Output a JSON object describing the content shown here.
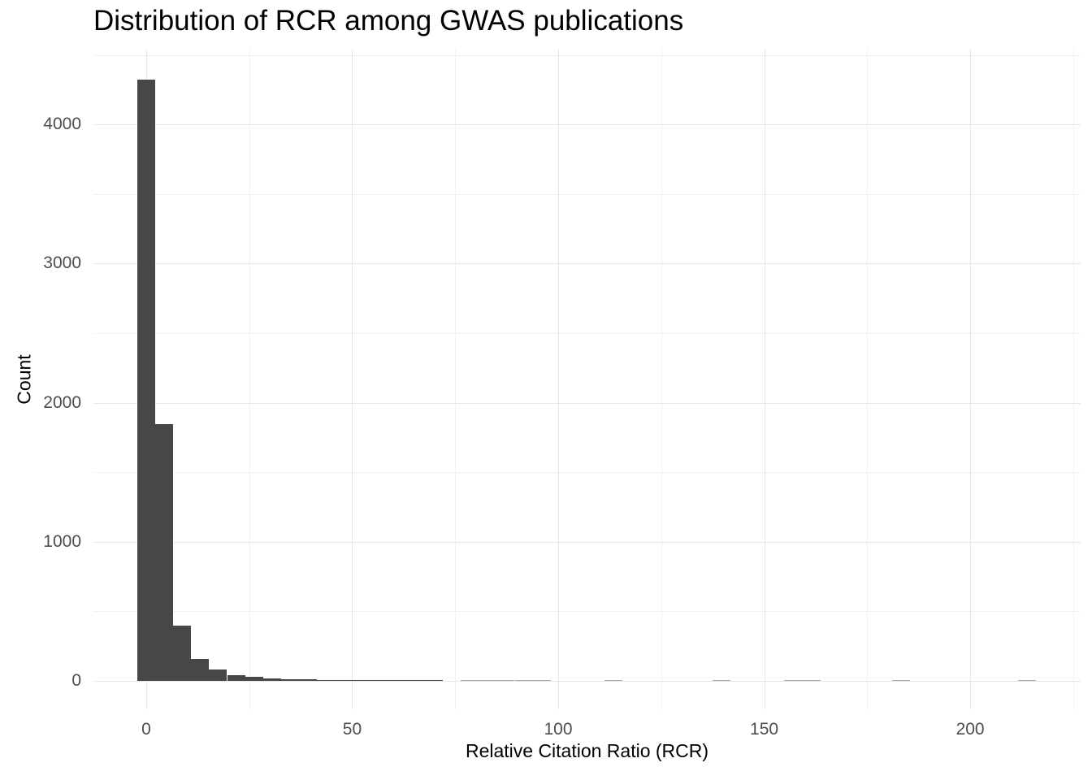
{
  "chart_data": {
    "type": "bar",
    "subtype": "histogram",
    "title": "Distribution of RCR among GWAS publications",
    "xlabel": "Relative Citation Ratio (RCR)",
    "ylabel": "Count",
    "x_major_ticks": [
      0,
      50,
      100,
      150,
      200
    ],
    "x_minor_ticks": [
      25,
      75,
      125,
      175,
      225
    ],
    "y_major_ticks": [
      0,
      1000,
      2000,
      3000,
      4000
    ],
    "y_minor_ticks": [
      500,
      1500,
      2500,
      3500,
      4500
    ],
    "xlim": [
      -12.8,
      226.8
    ],
    "ylim": [
      -204,
      4539
    ],
    "binwidth": 4.36,
    "grid": "on",
    "legend": "none",
    "bins": [
      {
        "center": 0.0,
        "count": 4320
      },
      {
        "center": 4.36,
        "count": 1845
      },
      {
        "center": 8.73,
        "count": 400
      },
      {
        "center": 13.09,
        "count": 158
      },
      {
        "center": 17.45,
        "count": 80
      },
      {
        "center": 21.82,
        "count": 44
      },
      {
        "center": 26.18,
        "count": 28
      },
      {
        "center": 30.54,
        "count": 19
      },
      {
        "center": 34.91,
        "count": 15
      },
      {
        "center": 39.27,
        "count": 12
      },
      {
        "center": 43.63,
        "count": 9
      },
      {
        "center": 48.0,
        "count": 7
      },
      {
        "center": 52.36,
        "count": 5
      },
      {
        "center": 56.72,
        "count": 4
      },
      {
        "center": 61.08,
        "count": 4
      },
      {
        "center": 65.45,
        "count": 3
      },
      {
        "center": 69.81,
        "count": 2
      },
      {
        "center": 78.54,
        "count": 1
      },
      {
        "center": 82.9,
        "count": 1
      },
      {
        "center": 87.26,
        "count": 1
      },
      {
        "center": 91.63,
        "count": 1
      },
      {
        "center": 95.99,
        "count": 1
      },
      {
        "center": 113.44,
        "count": 1
      },
      {
        "center": 139.62,
        "count": 1
      },
      {
        "center": 157.07,
        "count": 1
      },
      {
        "center": 161.43,
        "count": 1
      },
      {
        "center": 183.25,
        "count": 1
      },
      {
        "center": 213.79,
        "count": 1
      }
    ]
  },
  "style": {
    "bar_color": "#474747",
    "bar_color_faint": "#a9a9a9",
    "grid_major_color": "#e6e6e6",
    "grid_minor_color": "#f1f1f1",
    "tick_label_color": "#4d4d4d",
    "title_color": "#000000",
    "background": "#ffffff"
  }
}
